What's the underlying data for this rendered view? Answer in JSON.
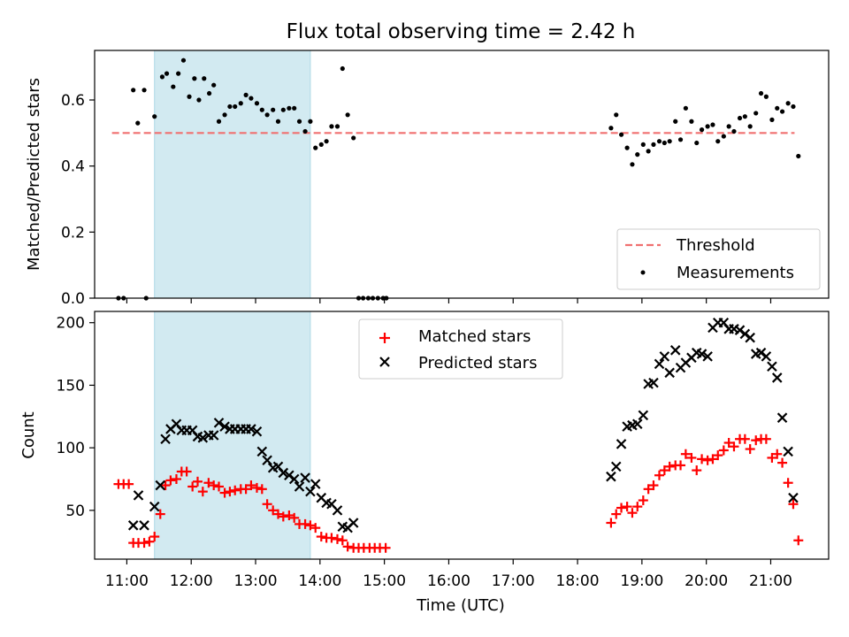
{
  "figure": {
    "title": "Flux total observing time = 2.42 h"
  },
  "colors": {
    "threshold": "#f07070",
    "shade": "#add8e6",
    "matched": "#ff0000",
    "predicted": "#000000",
    "measurement": "#000000"
  },
  "chart_data": [
    {
      "type": "scatter",
      "ylabel": "Matched/Predicted stars",
      "xlim": [
        10.5,
        21.9
      ],
      "ylim": [
        0,
        0.75
      ],
      "yticks": [
        0.0,
        0.2,
        0.4,
        0.6
      ],
      "ytick_labels": [
        "0.0",
        "0.2",
        "0.4",
        "0.6"
      ],
      "xticks": [
        11,
        12,
        13,
        14,
        15,
        16,
        17,
        18,
        19,
        20,
        21
      ],
      "shaded_span": [
        11.43,
        13.85
      ],
      "threshold": {
        "label": "Threshold",
        "y": 0.5,
        "x": [
          10.77,
          21.37
        ]
      },
      "legend": {
        "position": "lower right",
        "entries": [
          "Threshold",
          "Measurements"
        ]
      },
      "series": [
        {
          "name": "Measurements",
          "points": [
            [
              10.87,
              0.0
            ],
            [
              10.95,
              0.0
            ],
            [
              11.3,
              0.0
            ],
            [
              11.1,
              0.63
            ],
            [
              11.17,
              0.53
            ],
            [
              11.27,
              0.63
            ],
            [
              11.43,
              0.55
            ],
            [
              11.55,
              0.67
            ],
            [
              11.62,
              0.68
            ],
            [
              11.72,
              0.64
            ],
            [
              11.8,
              0.68
            ],
            [
              11.88,
              0.72
            ],
            [
              11.97,
              0.61
            ],
            [
              12.05,
              0.665
            ],
            [
              12.12,
              0.6
            ],
            [
              12.2,
              0.665
            ],
            [
              12.28,
              0.62
            ],
            [
              12.35,
              0.645
            ],
            [
              12.43,
              0.535
            ],
            [
              12.52,
              0.555
            ],
            [
              12.6,
              0.58
            ],
            [
              12.68,
              0.58
            ],
            [
              12.77,
              0.59
            ],
            [
              12.85,
              0.615
            ],
            [
              12.93,
              0.605
            ],
            [
              13.02,
              0.59
            ],
            [
              13.1,
              0.57
            ],
            [
              13.18,
              0.555
            ],
            [
              13.27,
              0.57
            ],
            [
              13.35,
              0.535
            ],
            [
              13.43,
              0.57
            ],
            [
              13.52,
              0.575
            ],
            [
              13.6,
              0.575
            ],
            [
              13.68,
              0.535
            ],
            [
              13.77,
              0.505
            ],
            [
              13.85,
              0.535
            ],
            [
              13.93,
              0.455
            ],
            [
              14.02,
              0.465
            ],
            [
              14.1,
              0.475
            ],
            [
              14.18,
              0.52
            ],
            [
              14.27,
              0.52
            ],
            [
              14.35,
              0.695
            ],
            [
              14.43,
              0.555
            ],
            [
              14.52,
              0.485
            ],
            [
              14.6,
              0.0
            ],
            [
              14.67,
              0.0
            ],
            [
              14.75,
              0.0
            ],
            [
              14.82,
              0.0
            ],
            [
              14.9,
              0.0
            ],
            [
              14.98,
              0.0
            ],
            [
              15.03,
              0.0
            ],
            [
              18.52,
              0.515
            ],
            [
              18.6,
              0.555
            ],
            [
              18.68,
              0.495
            ],
            [
              18.77,
              0.455
            ],
            [
              18.85,
              0.405
            ],
            [
              18.93,
              0.435
            ],
            [
              19.02,
              0.465
            ],
            [
              19.1,
              0.445
            ],
            [
              19.18,
              0.465
            ],
            [
              19.27,
              0.475
            ],
            [
              19.35,
              0.47
            ],
            [
              19.43,
              0.475
            ],
            [
              19.52,
              0.535
            ],
            [
              19.6,
              0.48
            ],
            [
              19.68,
              0.575
            ],
            [
              19.77,
              0.535
            ],
            [
              19.85,
              0.47
            ],
            [
              19.93,
              0.51
            ],
            [
              20.02,
              0.52
            ],
            [
              20.1,
              0.525
            ],
            [
              20.18,
              0.475
            ],
            [
              20.27,
              0.49
            ],
            [
              20.35,
              0.52
            ],
            [
              20.43,
              0.505
            ],
            [
              20.52,
              0.545
            ],
            [
              20.6,
              0.55
            ],
            [
              20.68,
              0.52
            ],
            [
              20.77,
              0.56
            ],
            [
              20.85,
              0.62
            ],
            [
              20.93,
              0.61
            ],
            [
              21.02,
              0.54
            ],
            [
              21.1,
              0.575
            ],
            [
              21.18,
              0.565
            ],
            [
              21.27,
              0.59
            ],
            [
              21.35,
              0.58
            ],
            [
              21.43,
              0.43
            ]
          ]
        }
      ]
    },
    {
      "type": "scatter",
      "ylabel": "Count",
      "xlabel": "Time (UTC)",
      "xlim": [
        10.5,
        21.9
      ],
      "ylim": [
        11,
        209
      ],
      "yticks": [
        50,
        100,
        150,
        200
      ],
      "ytick_labels": [
        "50",
        "100",
        "150",
        "200"
      ],
      "xticks": [
        11,
        12,
        13,
        14,
        15,
        16,
        17,
        18,
        19,
        20,
        21
      ],
      "xtick_labels": [
        "11:00",
        "12:00",
        "13:00",
        "14:00",
        "15:00",
        "16:00",
        "17:00",
        "18:00",
        "19:00",
        "20:00",
        "21:00"
      ],
      "shaded_span": [
        11.43,
        13.85
      ],
      "legend": {
        "position": "upper center",
        "entries": [
          "Matched stars",
          "Predicted stars"
        ]
      },
      "series": [
        {
          "name": "Matched stars",
          "marker": "plus",
          "points": [
            [
              10.87,
              71
            ],
            [
              10.95,
              71
            ],
            [
              11.03,
              71
            ],
            [
              11.1,
              24
            ],
            [
              11.18,
              24
            ],
            [
              11.27,
              24
            ],
            [
              11.35,
              25
            ],
            [
              11.43,
              29
            ],
            [
              11.52,
              47
            ],
            [
              11.6,
              70
            ],
            [
              11.68,
              74
            ],
            [
              11.77,
              75
            ],
            [
              11.85,
              81
            ],
            [
              11.93,
              81
            ],
            [
              12.02,
              69
            ],
            [
              12.1,
              73
            ],
            [
              12.18,
              65
            ],
            [
              12.27,
              72
            ],
            [
              12.35,
              70
            ],
            [
              12.43,
              69
            ],
            [
              12.52,
              64
            ],
            [
              12.6,
              65
            ],
            [
              12.68,
              66
            ],
            [
              12.77,
              67
            ],
            [
              12.85,
              67
            ],
            [
              12.93,
              70
            ],
            [
              13.02,
              68
            ],
            [
              13.1,
              67
            ],
            [
              13.18,
              55
            ],
            [
              13.27,
              50
            ],
            [
              13.35,
              47
            ],
            [
              13.43,
              45
            ],
            [
              13.52,
              46
            ],
            [
              13.6,
              44
            ],
            [
              13.68,
              39
            ],
            [
              13.77,
              39
            ],
            [
              13.85,
              38
            ],
            [
              13.93,
              36
            ],
            [
              14.02,
              29
            ],
            [
              14.1,
              28
            ],
            [
              14.18,
              28
            ],
            [
              14.27,
              27
            ],
            [
              14.35,
              26
            ],
            [
              14.43,
              21
            ],
            [
              14.52,
              20
            ],
            [
              14.6,
              20
            ],
            [
              14.68,
              20
            ],
            [
              14.77,
              20
            ],
            [
              14.85,
              20
            ],
            [
              14.93,
              20
            ],
            [
              15.02,
              20
            ],
            [
              18.52,
              40
            ],
            [
              18.6,
              47
            ],
            [
              18.68,
              52
            ],
            [
              18.77,
              53
            ],
            [
              18.85,
              48
            ],
            [
              18.93,
              53
            ],
            [
              19.02,
              58
            ],
            [
              19.1,
              67
            ],
            [
              19.18,
              70
            ],
            [
              19.27,
              78
            ],
            [
              19.35,
              82
            ],
            [
              19.43,
              85
            ],
            [
              19.52,
              86
            ],
            [
              19.6,
              86
            ],
            [
              19.68,
              95
            ],
            [
              19.77,
              92
            ],
            [
              19.85,
              82
            ],
            [
              19.93,
              91
            ],
            [
              20.02,
              90
            ],
            [
              20.1,
              91
            ],
            [
              20.18,
              94
            ],
            [
              20.27,
              98
            ],
            [
              20.35,
              104
            ],
            [
              20.43,
              101
            ],
            [
              20.52,
              107
            ],
            [
              20.6,
              107
            ],
            [
              20.68,
              99
            ],
            [
              20.77,
              106
            ],
            [
              20.85,
              107
            ],
            [
              20.93,
              107
            ],
            [
              21.02,
              92
            ],
            [
              21.1,
              95
            ],
            [
              21.18,
              88
            ],
            [
              21.27,
              72
            ],
            [
              21.35,
              55
            ],
            [
              21.43,
              26
            ]
          ]
        },
        {
          "name": "Predicted stars",
          "marker": "x",
          "points": [
            [
              11.1,
              38
            ],
            [
              11.18,
              62
            ],
            [
              11.27,
              38
            ],
            [
              11.43,
              53
            ],
            [
              11.52,
              70
            ],
            [
              11.6,
              107
            ],
            [
              11.68,
              115
            ],
            [
              11.77,
              119
            ],
            [
              11.85,
              114
            ],
            [
              11.93,
              114
            ],
            [
              12.02,
              114
            ],
            [
              12.1,
              109
            ],
            [
              12.18,
              108
            ],
            [
              12.27,
              110
            ],
            [
              12.35,
              110
            ],
            [
              12.43,
              120
            ],
            [
              12.52,
              117
            ],
            [
              12.6,
              115
            ],
            [
              12.68,
              115
            ],
            [
              12.77,
              115
            ],
            [
              12.85,
              115
            ],
            [
              12.93,
              115
            ],
            [
              13.02,
              113
            ],
            [
              13.1,
              97
            ],
            [
              13.18,
              90
            ],
            [
              13.27,
              84
            ],
            [
              13.35,
              85
            ],
            [
              13.43,
              80
            ],
            [
              13.52,
              78
            ],
            [
              13.6,
              75
            ],
            [
              13.68,
              69
            ],
            [
              13.77,
              76
            ],
            [
              13.85,
              65
            ],
            [
              13.93,
              71
            ],
            [
              14.02,
              60
            ],
            [
              14.1,
              56
            ],
            [
              14.18,
              55
            ],
            [
              14.27,
              50
            ],
            [
              14.35,
              37
            ],
            [
              14.43,
              36
            ],
            [
              14.52,
              40
            ],
            [
              18.52,
              77
            ],
            [
              18.6,
              85
            ],
            [
              18.68,
              103
            ],
            [
              18.77,
              117
            ],
            [
              18.85,
              118
            ],
            [
              18.93,
              119
            ],
            [
              19.02,
              126
            ],
            [
              19.1,
              151
            ],
            [
              19.18,
              152
            ],
            [
              19.27,
              167
            ],
            [
              19.35,
              173
            ],
            [
              19.43,
              160
            ],
            [
              19.52,
              178
            ],
            [
              19.6,
              164
            ],
            [
              19.68,
              168
            ],
            [
              19.77,
              172
            ],
            [
              19.85,
              176
            ],
            [
              19.93,
              175
            ],
            [
              20.02,
              173
            ],
            [
              20.1,
              196
            ],
            [
              20.18,
              200
            ],
            [
              20.27,
              200
            ],
            [
              20.35,
              195
            ],
            [
              20.43,
              195
            ],
            [
              20.52,
              194
            ],
            [
              20.6,
              191
            ],
            [
              20.68,
              188
            ],
            [
              20.77,
              175
            ],
            [
              20.85,
              176
            ],
            [
              20.93,
              173
            ],
            [
              21.02,
              165
            ],
            [
              21.1,
              156
            ],
            [
              21.18,
              124
            ],
            [
              21.27,
              97
            ],
            [
              21.35,
              60
            ]
          ]
        }
      ]
    }
  ]
}
